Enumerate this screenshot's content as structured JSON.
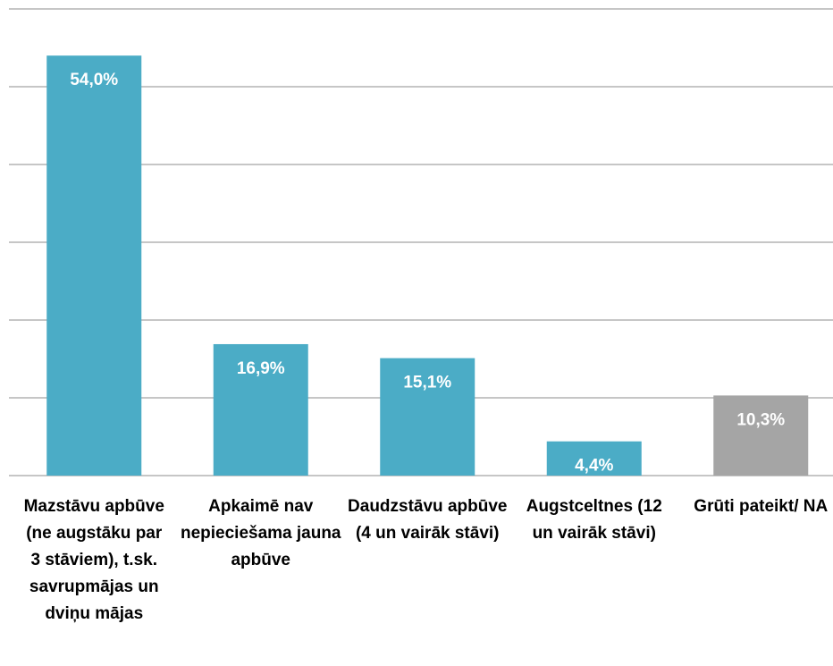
{
  "chart_data": {
    "type": "bar",
    "categories": [
      "Mazstāvu apbūve (ne augstāku par 3 stāviem), t.sk. savrupmājas un dviņu mājas",
      "Apkaimē nav nepieciešama jauna apbūve",
      "Daudzstāvu apbūve (4 un vairāk stāvi)",
      "Augstceltnes (12 un vairāk stāvi)",
      "Grūti pateikt/ NA"
    ],
    "values": [
      54.0,
      16.9,
      15.1,
      4.4,
      10.3
    ],
    "value_labels": [
      "54,0%",
      "16,9%",
      "15,1%",
      "4,4%",
      "10,3%"
    ],
    "colors": [
      "#4bacc6",
      "#4bacc6",
      "#4bacc6",
      "#4bacc6",
      "#a5a5a5"
    ],
    "ylim": [
      0,
      60
    ],
    "yticks": [
      0,
      10,
      20,
      30,
      40,
      50,
      60
    ],
    "grid": true
  }
}
